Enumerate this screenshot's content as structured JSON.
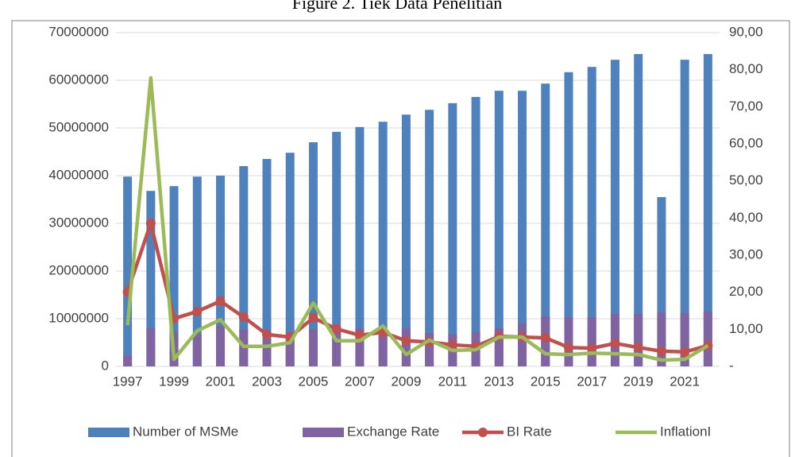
{
  "chart_data": {
    "type": "bar-line",
    "title": "Figure 2. Tiek Data Penelitian",
    "categories": [
      "1997",
      null,
      "1999",
      null,
      "2001",
      null,
      "2003",
      null,
      "2005",
      null,
      "2007",
      null,
      "2009",
      null,
      "2011",
      null,
      "2013",
      null,
      "2015",
      null,
      "2017",
      null,
      "2019",
      null,
      "2021",
      null
    ],
    "series": [
      {
        "name": "Number of MSMe",
        "type": "bar",
        "color": "#4f81bd",
        "values": [
          39800000,
          36800000,
          37800000,
          39800000,
          40000000,
          42000000,
          43500000,
          44800000,
          47000000,
          49200000,
          50200000,
          51300000,
          52800000,
          53800000,
          55200000,
          56500000,
          57800000,
          57800000,
          59300000,
          61700000,
          62800000,
          64300000,
          65500000,
          35500000,
          64300000,
          65500000
        ]
      },
      {
        "name": "Exchange Rate",
        "type": "bar",
        "color": "#8064a2",
        "values": [
          2300000,
          8000000,
          7200000,
          6800000,
          8500000,
          7800000,
          6800000,
          7200000,
          7800000,
          8000000,
          8000000,
          7500000,
          8000000,
          7000000,
          6800000,
          7200000,
          8000000,
          9000000,
          10500000,
          10300000,
          10300000,
          11000000,
          11000000,
          11300000,
          11200000,
          11500000
        ]
      },
      {
        "name": "BI Rate",
        "type": "line",
        "axis": "y2",
        "markers": true,
        "color": "#c0504d",
        "values": [
          20.1,
          38.6,
          12.9,
          14.8,
          17.6,
          13.3,
          8.6,
          7.9,
          13.1,
          10.1,
          8.4,
          9.2,
          6.9,
          6.6,
          5.8,
          5.4,
          8.1,
          7.9,
          7.7,
          5.1,
          4.9,
          6.2,
          5.1,
          4.1,
          3.9,
          5.6
        ]
      },
      {
        "name": "InflationI",
        "type": "line",
        "axis": "y2",
        "markers": false,
        "color": "#9bbb59",
        "values": [
          11.1,
          77.8,
          1.9,
          9.6,
          12.6,
          5.4,
          5.4,
          6.4,
          17.1,
          6.9,
          6.9,
          10.9,
          3.2,
          7.1,
          4.3,
          4.5,
          7.9,
          7.9,
          3.4,
          3.2,
          3.6,
          3.4,
          3.2,
          1.7,
          1.9,
          5.6
        ]
      }
    ],
    "ylim": [
      0,
      70000000
    ],
    "yticks": [
      0,
      10000000,
      20000000,
      30000000,
      40000000,
      50000000,
      60000000,
      70000000
    ],
    "y2lim": [
      0,
      90
    ],
    "y2ticks": [
      {
        "value": 0,
        "label": "-"
      },
      {
        "value": 10,
        "label": "10,00"
      },
      {
        "value": 20,
        "label": "20,00"
      },
      {
        "value": 30,
        "label": "30,00"
      },
      {
        "value": 40,
        "label": "40,00"
      },
      {
        "value": 50,
        "label": "50,00"
      },
      {
        "value": 60,
        "label": "60,00"
      },
      {
        "value": 70,
        "label": "70,00"
      },
      {
        "value": 80,
        "label": "80,00"
      },
      {
        "value": 90,
        "label": "90,00"
      }
    ],
    "grid": true,
    "legend": "bottom"
  }
}
